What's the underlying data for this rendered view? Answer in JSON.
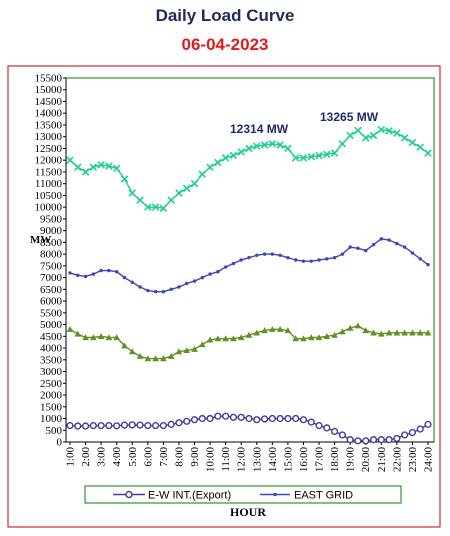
{
  "title": "Daily Load Curve",
  "date": "06-04-2023",
  "chart_data": {
    "type": "line",
    "xlabel": "HOUR",
    "ylabel": "MW",
    "ylim": [
      0,
      15500
    ],
    "ytick_step": 500,
    "grid": false,
    "legend_position": "bottom",
    "colors": {
      "frame": "#c00000",
      "plot_border": "#008000",
      "axis": "#000000"
    },
    "categories": [
      "1:00",
      "2:00",
      "3:00",
      "4:00",
      "5:00",
      "6:00",
      "7:00",
      "8:00",
      "9:00",
      "10:00",
      "11:00",
      "12:00",
      "13:00",
      "14:00",
      "15:00",
      "16:00",
      "17:00",
      "18:00",
      "19:00",
      "20:00",
      "21:00",
      "22:00",
      "23:00",
      "24:00"
    ],
    "x": [
      1,
      1.5,
      2,
      2.5,
      3,
      3.5,
      4,
      4.5,
      5,
      5.5,
      6,
      6.5,
      7,
      7.5,
      8,
      8.5,
      9,
      9.5,
      10,
      10.5,
      11,
      11.5,
      12,
      12.5,
      13,
      13.5,
      14,
      14.5,
      15,
      15.5,
      16,
      16.5,
      17,
      17.5,
      18,
      18.5,
      19,
      19.5,
      20,
      20.5,
      21,
      21.5,
      22,
      22.5,
      23,
      23.5,
      24
    ],
    "series": [
      {
        "name": "",
        "color": "#1fcf8f",
        "marker": "x",
        "values": [
          12000,
          11700,
          11500,
          11700,
          11800,
          11750,
          11650,
          11200,
          10600,
          10300,
          10000,
          10000,
          9950,
          10300,
          10600,
          10800,
          11000,
          11400,
          11700,
          11900,
          12100,
          12200,
          12350,
          12500,
          12600,
          12650,
          12700,
          12650,
          12500,
          12100,
          12100,
          12150,
          12200,
          12250,
          12300,
          12700,
          13050,
          13265,
          12950,
          13050,
          13300,
          13250,
          13150,
          12950,
          12750,
          12550,
          12300
        ]
      },
      {
        "name": "EAST GRID",
        "color": "#3c46b4",
        "marker": "dot",
        "values": [
          7200,
          7100,
          7050,
          7150,
          7300,
          7300,
          7250,
          7000,
          6800,
          6600,
          6450,
          6400,
          6400,
          6500,
          6600,
          6750,
          6850,
          7000,
          7150,
          7250,
          7450,
          7600,
          7750,
          7850,
          7950,
          8000,
          8000,
          7950,
          7850,
          7750,
          7700,
          7700,
          7750,
          7800,
          7850,
          8000,
          8300,
          8250,
          8150,
          8400,
          8650,
          8600,
          8450,
          8300,
          8050,
          7800,
          7550
        ]
      },
      {
        "name": "",
        "color": "#5f9222",
        "marker": "triangle",
        "values": [
          4800,
          4600,
          4450,
          4450,
          4500,
          4450,
          4450,
          4100,
          3850,
          3650,
          3550,
          3550,
          3550,
          3650,
          3850,
          3900,
          3950,
          4150,
          4350,
          4400,
          4400,
          4400,
          4450,
          4550,
          4650,
          4750,
          4800,
          4800,
          4750,
          4400,
          4400,
          4450,
          4450,
          4500,
          4550,
          4700,
          4850,
          4950,
          4750,
          4650,
          4600,
          4650,
          4650,
          4650,
          4650,
          4650,
          4650
        ]
      },
      {
        "name": "E-W INT.(Export)",
        "color": "#3e3e9e",
        "marker": "circle",
        "values": [
          700,
          680,
          680,
          700,
          700,
          700,
          690,
          720,
          730,
          720,
          700,
          700,
          700,
          750,
          820,
          880,
          950,
          1000,
          1000,
          1100,
          1100,
          1050,
          1050,
          1000,
          950,
          980,
          1000,
          1000,
          1000,
          1000,
          950,
          850,
          700,
          600,
          450,
          300,
          100,
          50,
          50,
          100,
          100,
          100,
          150,
          300,
          400,
          550,
          750
        ]
      }
    ],
    "annotations": [
      {
        "text": "12314 MW",
        "color": "#1f2a6c"
      },
      {
        "text": "13265 MW",
        "color": "#1f2a6c"
      }
    ],
    "legend": [
      "E-W INT.(Export)",
      "EAST GRID"
    ]
  }
}
